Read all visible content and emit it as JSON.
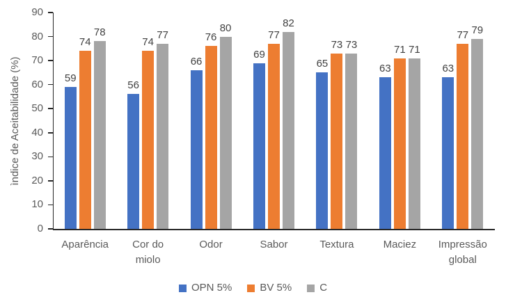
{
  "chart_data": {
    "type": "bar",
    "title": "",
    "ylabel": "ìndice de Aceitabilidade (%)",
    "xlabel": "",
    "ylim": [
      0,
      90
    ],
    "yticks": [
      0,
      10,
      20,
      30,
      40,
      50,
      60,
      70,
      80,
      90
    ],
    "grid": false,
    "legend_position": "bottom-center",
    "data_labels": "outside-end",
    "categories": [
      "Aparência",
      "Cor do miolo",
      "Odor",
      "Sabor",
      "Textura",
      "Maciez",
      "Impressão global"
    ],
    "series": [
      {
        "name": "OPN 5%",
        "color": "#4472C4",
        "values": [
          59,
          56,
          66,
          69,
          65,
          63,
          63
        ]
      },
      {
        "name": "BV 5%",
        "color": "#ED7D31",
        "values": [
          74,
          74,
          76,
          77,
          73,
          71,
          77
        ]
      },
      {
        "name": "C",
        "color": "#A5A5A5",
        "values": [
          78,
          77,
          80,
          82,
          73,
          71,
          79
        ]
      }
    ]
  },
  "style_colors": {
    "axis_line": "#262626",
    "tick_text": "#595959",
    "category_text": "#595959",
    "data_label_text": "#404040",
    "legend_text": "#595959",
    "background": "#FFFFFF"
  }
}
